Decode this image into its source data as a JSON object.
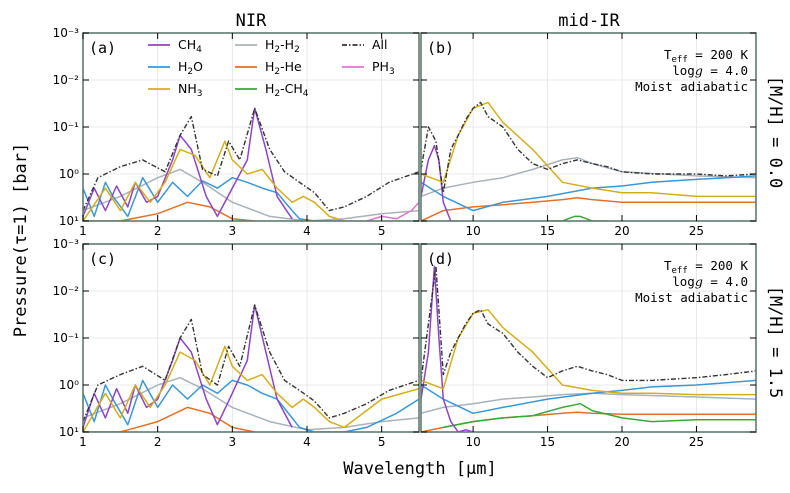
{
  "figure": {
    "column_titles": [
      "NIR",
      "mid-IR"
    ],
    "row_titles": [
      "[M/H] = 0.0",
      "[M/H] = 1.5"
    ],
    "ylabel": "Pressure(τ=1) [bar]",
    "xlabel": "Wavelength [μm]",
    "annotation": {
      "teff": "200 K",
      "logg": "4.0",
      "profile": "Moist adiabatic"
    }
  },
  "legend": [
    {
      "name": "CH4",
      "color": "#8e44c9"
    },
    {
      "name": "H2O",
      "color": "#3a97d6"
    },
    {
      "name": "NH3",
      "color": "#d4ae1a"
    },
    {
      "name": "H2-H2",
      "color": "#a9b2b9"
    },
    {
      "name": "H2-He",
      "color": "#e0712a"
    },
    {
      "name": "H2-CH4",
      "color": "#38a83a"
    },
    {
      "name": "All",
      "color": "#333333"
    },
    {
      "name": "PH3",
      "color": "#d977cf"
    }
  ],
  "axes": {
    "nir": {
      "xlim": [
        1,
        5.5
      ],
      "xticks": [
        "1",
        "2",
        "3",
        "4",
        "5"
      ]
    },
    "mir": {
      "xlim": [
        6.5,
        29
      ],
      "xticks": [
        "10",
        "15",
        "20",
        "25"
      ]
    },
    "ylim": [
      10,
      0.001
    ],
    "yticks": [
      "10⁻³",
      "10⁻²",
      "10⁻¹",
      "10⁰",
      "10¹"
    ]
  },
  "chart_data": [
    {
      "type": "line",
      "panel": "(a)",
      "region": "NIR",
      "metallicity": "[M/H] = 0.0",
      "yscale": "log",
      "ylim": [
        10,
        0.001
      ],
      "xlim": [
        1,
        5.5
      ],
      "series": [
        {
          "name": "All",
          "x": [
            1.0,
            1.2,
            1.5,
            1.8,
            2.1,
            2.3,
            2.45,
            2.6,
            2.8,
            2.95,
            3.1,
            3.3,
            3.5,
            3.7,
            3.9,
            4.1,
            4.3,
            4.5,
            4.8,
            5.1,
            5.5
          ],
          "y": [
            6,
            1.2,
            0.7,
            0.5,
            0.9,
            0.15,
            0.06,
            0.8,
            1.1,
            0.2,
            0.5,
            0.04,
            0.3,
            0.9,
            1.5,
            2.5,
            6,
            5,
            3,
            1.5,
            0.9
          ]
        },
        {
          "name": "CH4",
          "x": [
            1.0,
            1.15,
            1.3,
            1.45,
            1.6,
            1.7,
            1.85,
            2.0,
            2.2,
            2.3,
            2.45,
            2.65,
            2.8,
            3.0,
            3.2,
            3.3,
            3.45,
            3.6,
            3.8
          ],
          "y": [
            8,
            2,
            6,
            1.8,
            5,
            1.5,
            4,
            3,
            0.5,
            0.15,
            0.3,
            3,
            8,
            2,
            0.5,
            0.04,
            0.3,
            3,
            9
          ]
        },
        {
          "name": "H2O",
          "x": [
            1.0,
            1.15,
            1.3,
            1.4,
            1.6,
            1.8,
            2.0,
            2.2,
            2.4,
            2.6,
            2.8,
            3.0,
            3.2,
            3.4,
            3.6,
            3.8,
            3.9,
            4.1,
            4.3,
            4.5
          ],
          "y": [
            2,
            8,
            1.5,
            3,
            8,
            1.2,
            4,
            1.5,
            3,
            1.4,
            2,
            1.2,
            1.5,
            2,
            2.5,
            6,
            9,
            10,
            10,
            10
          ]
        },
        {
          "name": "NH3",
          "x": [
            1.0,
            1.3,
            1.5,
            1.7,
            1.9,
            2.1,
            2.3,
            2.5,
            2.7,
            2.9,
            3.0,
            3.2,
            3.4,
            3.6,
            3.8,
            3.95,
            4.1,
            4.3,
            4.5
          ],
          "y": [
            10,
            2,
            6,
            1.5,
            4,
            1.5,
            0.3,
            0.4,
            1.2,
            0.2,
            0.5,
            1.0,
            0.8,
            2,
            4,
            3,
            4,
            8,
            10
          ]
        },
        {
          "name": "H2-H2",
          "x": [
            1.0,
            1.5,
            2.0,
            2.3,
            2.6,
            3.0,
            3.5,
            4.0,
            4.5,
            5.0,
            5.5
          ],
          "y": [
            6,
            3,
            1.2,
            0.8,
            1.5,
            4,
            8,
            10,
            9,
            7,
            6
          ]
        },
        {
          "name": "H2-He",
          "x": [
            1.0,
            1.5,
            2.0,
            2.4,
            2.7,
            3.0,
            3.3
          ],
          "y": [
            10,
            10,
            7,
            4,
            5,
            9,
            10
          ]
        },
        {
          "name": "PH3",
          "x": [
            4.8,
            5.0,
            5.2,
            5.4,
            5.5
          ],
          "y": [
            10,
            8,
            9,
            6,
            4
          ]
        }
      ]
    },
    {
      "type": "line",
      "panel": "(b)",
      "region": "mid-IR",
      "metallicity": "[M/H] = 0.0",
      "yscale": "log",
      "ylim": [
        10,
        0.001
      ],
      "xlim": [
        6.5,
        29
      ],
      "series": [
        {
          "name": "All",
          "x": [
            6.5,
            7.0,
            7.5,
            8.0,
            8.5,
            9.0,
            9.5,
            10.0,
            10.5,
            11.0,
            12.0,
            13.0,
            14.0,
            15.0,
            16.0,
            17.0,
            18.0,
            19.0,
            20.0,
            22.0,
            25.0,
            27.0,
            29.0
          ],
          "y": [
            0.8,
            0.1,
            0.2,
            2.5,
            0.3,
            0.15,
            0.07,
            0.04,
            0.03,
            0.06,
            0.1,
            0.3,
            0.6,
            0.8,
            0.6,
            0.5,
            0.6,
            0.7,
            0.9,
            1.0,
            1.0,
            1.1,
            1.0
          ]
        },
        {
          "name": "CH4",
          "x": [
            6.5,
            7.0,
            7.4,
            7.7,
            8.0,
            8.5,
            9.0
          ],
          "y": [
            3,
            0.5,
            0.25,
            0.5,
            4,
            10,
            10
          ]
        },
        {
          "name": "H2O",
          "x": [
            6.5,
            8.0,
            10.0,
            12.0,
            15.0,
            18.0,
            20.0,
            22.0,
            25.0,
            27.0,
            29.0
          ],
          "y": [
            1.5,
            3,
            6,
            4,
            3,
            2,
            1.8,
            1.5,
            1.3,
            1.2,
            1.1
          ]
        },
        {
          "name": "NH3",
          "x": [
            6.5,
            8.0,
            9.0,
            10.0,
            11.0,
            12.0,
            14.0,
            16.0,
            18.0,
            20.0,
            22.0,
            25.0,
            27.0,
            29.0
          ],
          "y": [
            1.0,
            1.5,
            0.15,
            0.04,
            0.03,
            0.08,
            0.3,
            1.5,
            2,
            2.5,
            2.5,
            3,
            3,
            3
          ]
        },
        {
          "name": "H2-H2",
          "x": [
            6.5,
            8.0,
            10.0,
            12.0,
            14.0,
            16.0,
            17.0,
            18.0,
            20.0,
            25.0,
            29.0
          ],
          "y": [
            3,
            2,
            1.5,
            1.2,
            0.8,
            0.5,
            0.45,
            0.6,
            0.9,
            1.1,
            1.2
          ]
        },
        {
          "name": "H2-He",
          "x": [
            6.5,
            8.0,
            10.0,
            12.0,
            14.0,
            16.0,
            17.0,
            18.0,
            20.0,
            25.0,
            29.0
          ],
          "y": [
            10,
            6,
            5,
            4.5,
            4,
            3.5,
            3.2,
            3.5,
            4,
            4,
            4
          ]
        },
        {
          "name": "H2-CH4",
          "x": [
            15.0,
            16.0,
            16.8,
            17.2,
            18.0,
            19.0
          ],
          "y": [
            10,
            10,
            8,
            8,
            10,
            10
          ]
        }
      ]
    },
    {
      "type": "line",
      "panel": "(c)",
      "region": "NIR",
      "metallicity": "[M/H] = 1.5",
      "yscale": "log",
      "ylim": [
        10,
        0.001
      ],
      "xlim": [
        1,
        5.5
      ],
      "series": [
        {
          "name": "All",
          "x": [
            1.0,
            1.2,
            1.5,
            1.8,
            2.1,
            2.3,
            2.45,
            2.6,
            2.8,
            2.95,
            3.1,
            3.3,
            3.5,
            3.7,
            3.9,
            4.1,
            4.3,
            4.5,
            4.8,
            5.1,
            5.5
          ],
          "y": [
            6,
            1.0,
            0.6,
            0.4,
            0.8,
            0.1,
            0.04,
            0.6,
            1.0,
            0.15,
            0.4,
            0.02,
            0.2,
            0.8,
            1.3,
            2.2,
            5,
            4,
            2.5,
            1.3,
            0.8
          ]
        },
        {
          "name": "CH4",
          "x": [
            1.0,
            1.15,
            1.3,
            1.45,
            1.6,
            1.7,
            1.85,
            2.0,
            2.2,
            2.3,
            2.45,
            2.65,
            2.8,
            3.0,
            3.2,
            3.3,
            3.45,
            3.6,
            3.8
          ],
          "y": [
            8,
            1.5,
            5,
            1.2,
            4,
            1.0,
            3,
            2,
            0.3,
            0.1,
            0.2,
            2,
            7,
            1.5,
            0.3,
            0.02,
            0.2,
            2,
            8
          ]
        },
        {
          "name": "H2O",
          "x": [
            1.0,
            1.15,
            1.3,
            1.4,
            1.6,
            1.8,
            2.0,
            2.2,
            2.4,
            2.6,
            2.8,
            3.0,
            3.2,
            3.4,
            3.6,
            3.8,
            3.9,
            4.1,
            4.3,
            4.5,
            4.8,
            5.2,
            5.5
          ],
          "y": [
            1.5,
            6,
            1.0,
            2,
            7,
            0.8,
            3,
            1.0,
            2,
            1.0,
            1.5,
            0.8,
            1.0,
            1.5,
            2,
            5,
            8,
            10,
            10,
            10,
            8,
            4,
            2
          ]
        },
        {
          "name": "NH3",
          "x": [
            1.0,
            1.3,
            1.5,
            1.7,
            1.9,
            2.1,
            2.3,
            2.5,
            2.7,
            2.9,
            3.0,
            3.2,
            3.4,
            3.6,
            3.8,
            3.95,
            4.1,
            4.3,
            4.5,
            5.0,
            5.5
          ],
          "y": [
            10,
            1.5,
            5,
            1.0,
            3,
            1.0,
            0.2,
            0.3,
            1.0,
            0.15,
            0.4,
            0.8,
            0.6,
            1.5,
            3,
            2,
            3,
            6,
            8,
            2,
            1.2
          ]
        },
        {
          "name": "H2-H2",
          "x": [
            1.0,
            1.5,
            2.0,
            2.3,
            2.6,
            3.0,
            3.5,
            4.0,
            4.5,
            5.0,
            5.5
          ],
          "y": [
            5,
            2.5,
            1.0,
            0.7,
            1.2,
            3,
            6,
            9,
            8,
            6,
            5
          ]
        },
        {
          "name": "H2-He",
          "x": [
            1.0,
            1.5,
            2.0,
            2.4,
            2.7,
            3.0,
            3.3
          ],
          "y": [
            10,
            10,
            6,
            3,
            4,
            8,
            10
          ]
        }
      ]
    },
    {
      "type": "line",
      "panel": "(d)",
      "region": "mid-IR",
      "metallicity": "[M/H] = 1.5",
      "yscale": "log",
      "ylim": [
        10,
        0.001
      ],
      "xlim": [
        6.5,
        29
      ],
      "series": [
        {
          "name": "All",
          "x": [
            6.5,
            7.0,
            7.5,
            8.0,
            8.5,
            9.0,
            9.5,
            10.0,
            10.5,
            11.0,
            12.0,
            13.0,
            14.0,
            15.0,
            16.0,
            17.0,
            18.0,
            19.0,
            20.0,
            22.0,
            25.0,
            27.0,
            29.0
          ],
          "y": [
            0.8,
            0.05,
            0.003,
            0.6,
            0.2,
            0.1,
            0.05,
            0.03,
            0.025,
            0.05,
            0.08,
            0.2,
            0.4,
            0.7,
            0.5,
            0.4,
            0.5,
            0.6,
            0.8,
            0.8,
            0.7,
            0.6,
            0.5
          ]
        },
        {
          "name": "CH4",
          "x": [
            6.5,
            7.0,
            7.4,
            7.7,
            8.0,
            8.5,
            9.0,
            9.5,
            10.0
          ],
          "y": [
            2,
            0.2,
            0.003,
            0.1,
            2,
            6,
            10,
            9,
            10
          ]
        },
        {
          "name": "H2O",
          "x": [
            6.5,
            8.0,
            10.0,
            12.0,
            15.0,
            18.0,
            20.0,
            22.0,
            25.0,
            27.0,
            29.0
          ],
          "y": [
            1.0,
            2,
            4,
            3,
            2,
            1.5,
            1.3,
            1.1,
            1.0,
            0.9,
            0.8
          ]
        },
        {
          "name": "NH3",
          "x": [
            6.5,
            8.0,
            9.0,
            10.0,
            11.0,
            12.0,
            14.0,
            16.0,
            18.0,
            20.0,
            22.0,
            25.0,
            27.0,
            29.0
          ],
          "y": [
            0.8,
            1.2,
            0.1,
            0.03,
            0.025,
            0.06,
            0.2,
            1.0,
            1.3,
            1.5,
            1.5,
            1.6,
            1.6,
            1.6
          ]
        },
        {
          "name": "H2-H2",
          "x": [
            6.5,
            8.0,
            10.0,
            12.0,
            14.0,
            16.0,
            18.0,
            20.0,
            25.0,
            29.0
          ],
          "y": [
            4,
            3,
            2.5,
            2,
            1.8,
            1.6,
            1.5,
            1.6,
            1.8,
            2.0
          ]
        },
        {
          "name": "H2-He",
          "x": [
            6.5,
            8.0,
            10.0,
            12.0,
            14.0,
            16.0,
            17.0,
            18.0,
            20.0,
            25.0,
            29.0
          ],
          "y": [
            10,
            8,
            6,
            5,
            4.5,
            4,
            3.8,
            4,
            4.2,
            4.2,
            4.2
          ]
        },
        {
          "name": "H2-CH4",
          "x": [
            8.0,
            10.0,
            12.0,
            14.0,
            16.0,
            17.2,
            18.0,
            20.0,
            22.0,
            25.0,
            29.0
          ],
          "y": [
            8,
            6,
            5,
            4.5,
            3,
            2.5,
            3.5,
            5,
            6,
            5.5,
            5.5
          ]
        }
      ]
    }
  ]
}
